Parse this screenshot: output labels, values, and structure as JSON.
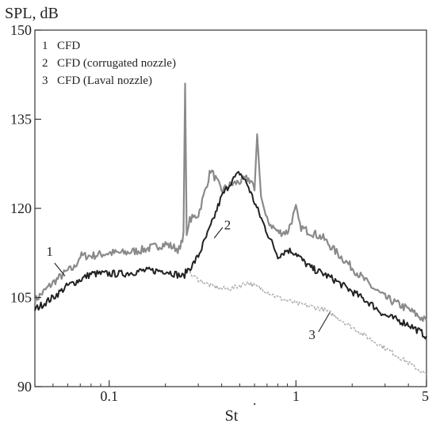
{
  "chart_data": {
    "type": "line",
    "ylabel": "SPL, dB",
    "xlabel": "St",
    "x_scale": "log",
    "xlim": [
      0.04,
      5
    ],
    "ylim": [
      90,
      150
    ],
    "grid": false,
    "x_ticks": [
      {
        "value": 0.1,
        "label": "0.1"
      },
      {
        "value": 1,
        "label": "1"
      },
      {
        "value": 5,
        "label": "5"
      }
    ],
    "y_ticks": [
      {
        "value": 90,
        "label": "90"
      },
      {
        "value": 105,
        "label": "105"
      },
      {
        "value": 120,
        "label": "120"
      },
      {
        "value": 135,
        "label": "135"
      },
      {
        "value": 150,
        "label": "150"
      }
    ],
    "legend": {
      "placement": "top-left",
      "entries": [
        {
          "number": "1",
          "label": "CFD"
        },
        {
          "number": "2",
          "label": "CFD (corrugated nozzle)"
        },
        {
          "number": "3",
          "label": "CFD (Laval nozzle)"
        }
      ]
    },
    "series": [
      {
        "number": "1",
        "color": "#8a8a8a",
        "x": [
          0.04,
          0.05,
          0.06,
          0.065,
          0.07,
          0.08,
          0.1,
          0.12,
          0.15,
          0.2,
          0.24,
          0.25,
          0.255,
          0.26,
          0.27,
          0.3,
          0.32,
          0.35,
          0.4,
          0.45,
          0.5,
          0.55,
          0.58,
          0.6,
          0.62,
          0.65,
          0.7,
          0.8,
          0.9,
          0.95,
          1.0,
          1.05,
          1.1,
          1.2,
          1.4,
          1.6,
          2.0,
          2.5,
          3.0,
          4.0,
          5.0
        ],
        "y": [
          104.5,
          107.5,
          109.5,
          110.0,
          112.0,
          112.0,
          112.5,
          112.5,
          113.0,
          114.0,
          113.0,
          116.0,
          141.0,
          115.5,
          118.0,
          119.0,
          122.0,
          126.5,
          123.0,
          124.0,
          124.5,
          125.0,
          124.5,
          123.0,
          132.5,
          122.0,
          118.0,
          116.0,
          116.0,
          118.0,
          120.0,
          117.0,
          116.5,
          116.0,
          115.0,
          113.0,
          110.0,
          107.0,
          105.0,
          103.0,
          101.0
        ]
      },
      {
        "number": "2",
        "color": "#222222",
        "x": [
          0.04,
          0.05,
          0.06,
          0.07,
          0.08,
          0.1,
          0.12,
          0.15,
          0.2,
          0.25,
          0.26,
          0.28,
          0.3,
          0.35,
          0.4,
          0.45,
          0.5,
          0.55,
          0.6,
          0.7,
          0.8,
          0.9,
          1.0,
          1.1,
          1.2,
          1.4,
          1.6,
          2.0,
          2.5,
          3.0,
          4.0,
          5.0
        ],
        "y": [
          103.0,
          105.0,
          107.0,
          108.0,
          109.0,
          109.0,
          109.0,
          109.5,
          109.5,
          108.5,
          109.5,
          110.5,
          112.0,
          117.0,
          122.0,
          124.5,
          126.0,
          124.0,
          121.0,
          116.0,
          112.0,
          113.0,
          112.5,
          111.0,
          110.0,
          109.0,
          108.0,
          106.0,
          104.0,
          102.0,
          100.5,
          98.5
        ]
      },
      {
        "number": "3",
        "color": "#aaaaaa",
        "x": [
          0.27,
          0.3,
          0.35,
          0.4,
          0.45,
          0.5,
          0.55,
          0.6,
          0.7,
          0.8,
          1.0,
          1.2,
          1.4,
          1.6,
          2.0,
          2.5,
          3.0,
          4.0,
          5.0
        ],
        "y": [
          109.0,
          108.0,
          107.0,
          106.5,
          106.5,
          107.0,
          107.5,
          107.0,
          106.0,
          105.0,
          104.0,
          103.5,
          103.0,
          102.0,
          100.0,
          98.0,
          96.5,
          94.0,
          92.0
        ]
      }
    ],
    "curve_labels": [
      {
        "text": "1",
        "x": 0.048,
        "y": 112.0
      },
      {
        "text": "2",
        "x": 0.43,
        "y": 116.5
      },
      {
        "text": "3",
        "x": 1.22,
        "y": 98.0
      }
    ],
    "annotations": [
      {
        "text": "·",
        "x": 0.6,
        "y": 86.0
      }
    ]
  }
}
